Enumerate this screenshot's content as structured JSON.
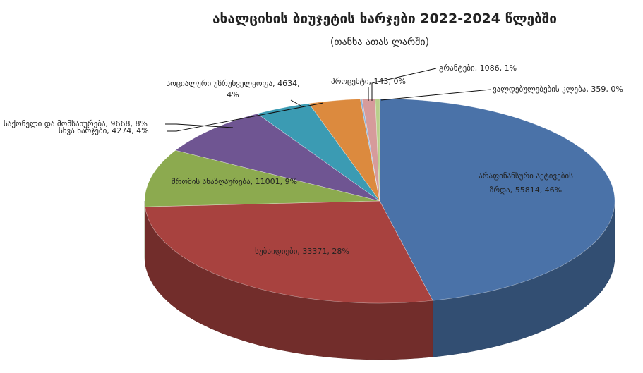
{
  "chart_data": {
    "type": "pie3d",
    "title": "ახალციხის ბიუჯეტის ხარჯები 2022-2024 წლებში",
    "subtitle": "(თანხა ათას ლარში)",
    "values": [
      55814,
      33371,
      11001,
      9668,
      4634,
      4274,
      143,
      1086,
      359
    ],
    "value_labels": [
      [
        "არაფინანსური აქტივების",
        "ზრდა, 55814, 46%"
      ],
      [
        "სუბსიდიები, 33371, 28%"
      ],
      [
        "შრომის ანაზღაურება, 11001, 9%"
      ],
      [
        "საქონელი და მომსახურება, 9668, 8%"
      ],
      [
        "სოციალური უზრუნველყოფა, 4634,",
        "4%"
      ],
      [
        "სხვა ხარჯები, 4274, 4%"
      ],
      [
        "პროცენტი, 143, 0%"
      ],
      [
        "გრანტები, 1086, 1%"
      ],
      [
        "ვალდებულებების კლება, 359, 0%"
      ]
    ],
    "colors": [
      "#4a72a8",
      "#a8423f",
      "#8caa4f",
      "#6f5592",
      "#3b9bb3",
      "#dc8a3e",
      "#8fb4d9",
      "#d69b9b",
      "#b8cf8c"
    ]
  }
}
